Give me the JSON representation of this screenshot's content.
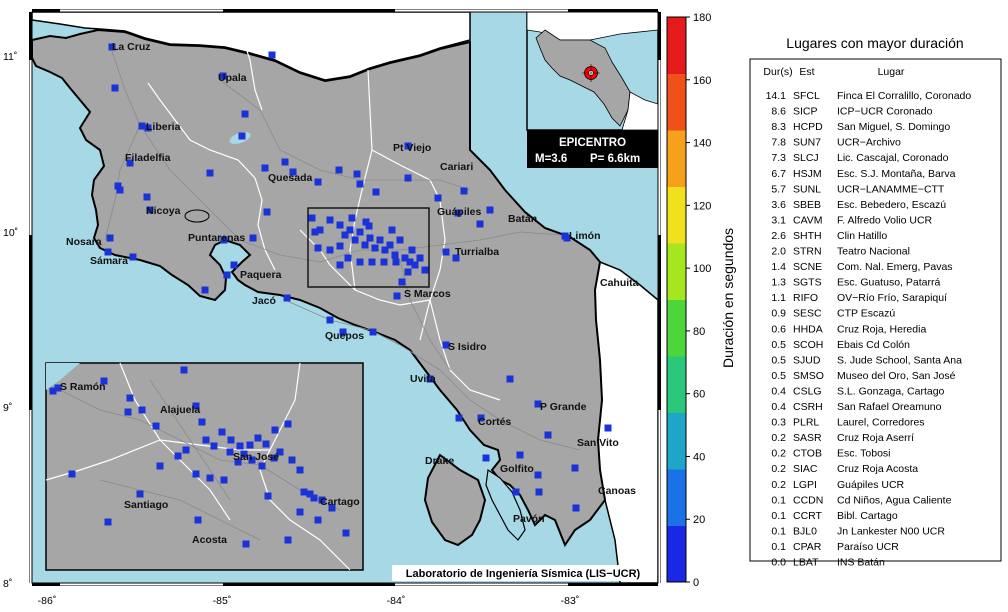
{
  "map": {
    "lon_ticks": [
      "-86˚",
      "-85˚",
      "-84˚",
      "-83˚"
    ],
    "lat_ticks": [
      "8˚",
      "9˚",
      "10˚",
      "11˚"
    ],
    "footer": "Laboratorio de Ingeniería Sísmica (LIS−UCR)",
    "colors": {
      "sea": "#a6d8e6",
      "land": "#a6a6a6",
      "station": "#1a33d9",
      "epicenter": "#ff0000"
    },
    "cities": [
      {
        "name": "La Cruz"
      },
      {
        "name": "Upala"
      },
      {
        "name": "Liberia"
      },
      {
        "name": "Filadelfia"
      },
      {
        "name": "Nicoya"
      },
      {
        "name": "Nosara"
      },
      {
        "name": "Sámara"
      },
      {
        "name": "Puntarenas"
      },
      {
        "name": "Paquera"
      },
      {
        "name": "Jacó"
      },
      {
        "name": "Quesada"
      },
      {
        "name": "Pt Viejo"
      },
      {
        "name": "Cariari"
      },
      {
        "name": "Guápiles"
      },
      {
        "name": "Batán"
      },
      {
        "name": "Limón"
      },
      {
        "name": "Turrialba"
      },
      {
        "name": "Cahuita"
      },
      {
        "name": "S Marcos"
      },
      {
        "name": "Quepos"
      },
      {
        "name": "S Isidro"
      },
      {
        "name": "Uvita"
      },
      {
        "name": "P Grande"
      },
      {
        "name": "Cortés"
      },
      {
        "name": "San Vito"
      },
      {
        "name": "Drake"
      },
      {
        "name": "Golfito"
      },
      {
        "name": "Canoas"
      },
      {
        "name": "Pavón"
      }
    ],
    "inset": {
      "title": "EPICENTRO",
      "magnitude": "M=3.6",
      "depth": "P=  6.6km"
    },
    "zoom_cities": [
      {
        "name": "S Ramón"
      },
      {
        "name": "Alajuela"
      },
      {
        "name": "San José"
      },
      {
        "name": "Santiago"
      },
      {
        "name": "Cartago"
      },
      {
        "name": "Acosta"
      }
    ]
  },
  "colorbar": {
    "label": "Duración en segundos",
    "ticks": [
      "0",
      "20",
      "40",
      "60",
      "80",
      "100",
      "120",
      "140",
      "160",
      "180"
    ],
    "colors": [
      "#1a28e6",
      "#1a72e6",
      "#1ea5c8",
      "#2bc77a",
      "#4cd63a",
      "#a6e61e",
      "#f0e01e",
      "#f5a21a",
      "#f0501a",
      "#e61a1a"
    ]
  },
  "table": {
    "title": "Lugares con mayor duración",
    "headers": [
      "Dur(s)",
      "Est",
      "Lugar"
    ],
    "rows": [
      [
        "14.1",
        "SFCL",
        "Finca El Corralillo, Coronado"
      ],
      [
        "8.6",
        "SICP",
        "ICP−UCR Coronado"
      ],
      [
        "8.3",
        "HCPD",
        "San Miguel, S. Domingo"
      ],
      [
        "7.8",
        "SUN7",
        "UCR−Archivo"
      ],
      [
        "7.3",
        "SLCJ",
        "Lic. Cascajal, Coronado"
      ],
      [
        "6.7",
        "HSJM",
        "Esc. S.J. Montaña, Barva"
      ],
      [
        "5.7",
        "SUNL",
        "UCR−LANAMME−CTT"
      ],
      [
        "3.6",
        "SBEB",
        "Esc. Bebedero, Escazú"
      ],
      [
        "3.1",
        "CAVM",
        "F. Alfredo Volio UCR"
      ],
      [
        "2.6",
        "SHTH",
        "Clin Hatillo"
      ],
      [
        "2.0",
        "STRN",
        "Teatro Nacional"
      ],
      [
        "1.4",
        "SCNE",
        "Com. Nal. Emerg, Pavas"
      ],
      [
        "1.3",
        "SGTS",
        "Esc. Guatuso, Patarrá"
      ],
      [
        "1.1",
        "RIFO",
        "OV−Río Frío, Sarapiquí"
      ],
      [
        "0.9",
        "SESC",
        "CTP Escazú"
      ],
      [
        "0.6",
        "HHDA",
        "Cruz Roja, Heredia"
      ],
      [
        "0.5",
        "SCOH",
        "Ebais Cd Colón"
      ],
      [
        "0.5",
        "SJUD",
        "S. Jude School, Santa Ana"
      ],
      [
        "0.5",
        "SMSO",
        "Museo del Oro, San José"
      ],
      [
        "0.4",
        "CSLG",
        "S.L. Gonzaga, Cartago"
      ],
      [
        "0.4",
        "CSRH",
        "San Rafael Oreamuno"
      ],
      [
        "0.3",
        "PLRL",
        "Laurel, Corredores"
      ],
      [
        "0.2",
        "SASR",
        "Cruz Roja Aserrí"
      ],
      [
        "0.2",
        "CTOB",
        "Esc. Tobosi"
      ],
      [
        "0.2",
        "SIAC",
        "Cruz Roja Acosta"
      ],
      [
        "0.2",
        "LGPI",
        "Guápiles UCR"
      ],
      [
        "0.1",
        "CCDN",
        "Cd Niños, Agua Caliente"
      ],
      [
        "0.1",
        "CCRT",
        "Bibl. Cartago"
      ],
      [
        "0.1",
        "BJL0",
        "Jn Lankester N00 UCR"
      ],
      [
        "0.1",
        "CPAR",
        "Paraíso UCR"
      ],
      [
        "0.0",
        "LBAT",
        "INS Batán"
      ]
    ]
  }
}
